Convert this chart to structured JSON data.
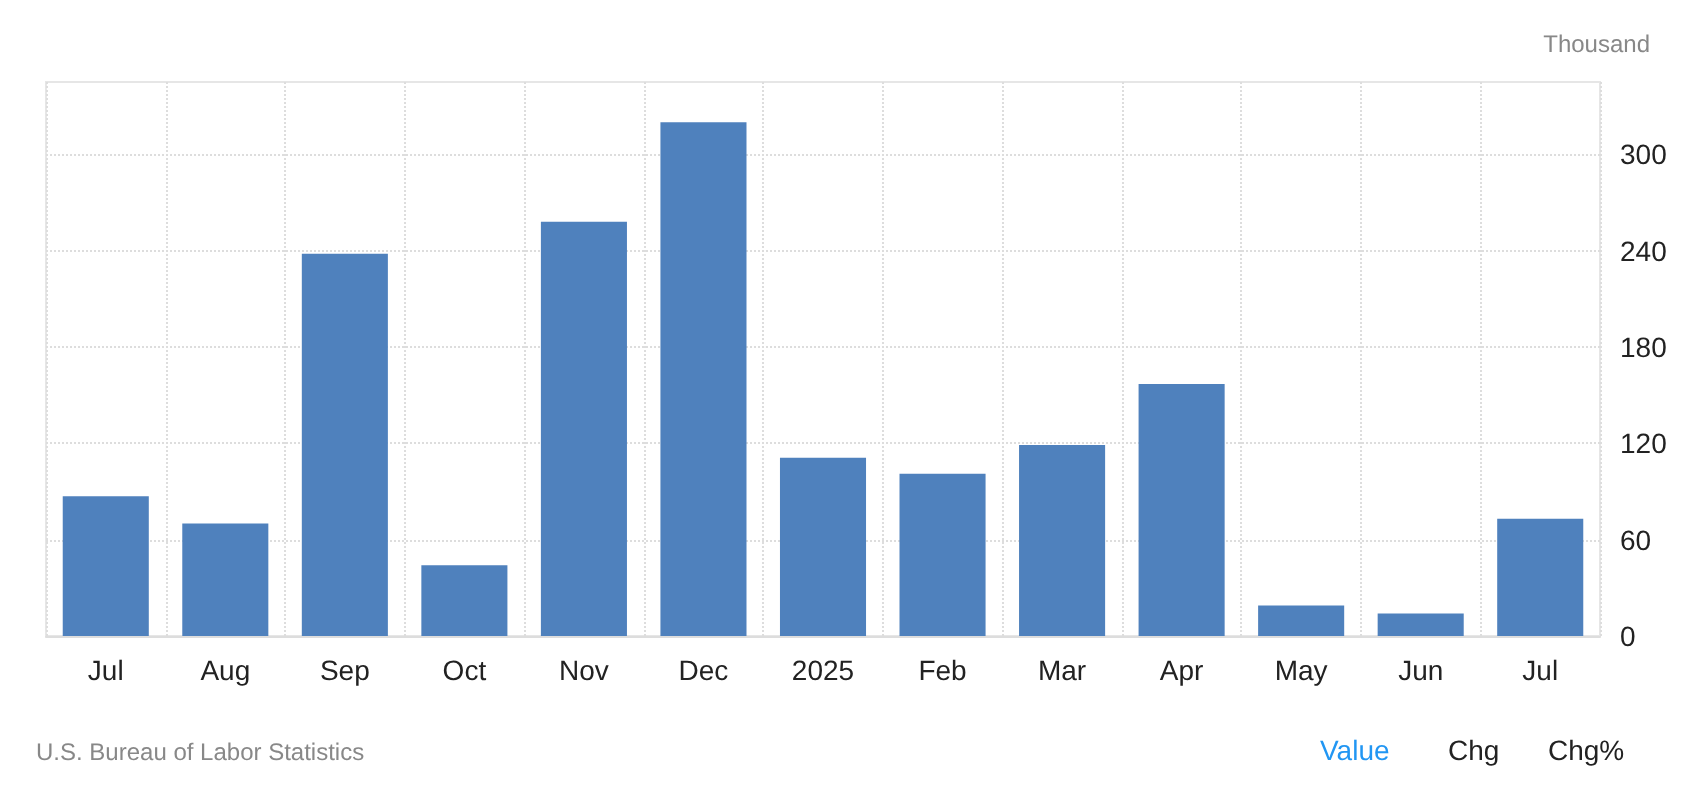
{
  "chart_data": {
    "type": "bar",
    "ylabel": "Thousand",
    "categories": [
      "Jul",
      "Aug",
      "Sep",
      "Oct",
      "Nov",
      "Dec",
      "2025",
      "Feb",
      "Mar",
      "Apr",
      "May",
      "Jun",
      "Jul"
    ],
    "values": [
      87,
      70,
      238,
      44,
      258,
      320,
      111,
      101,
      119,
      157,
      19,
      14,
      73
    ],
    "color": "#4f81bd",
    "ylim": [
      0,
      345
    ],
    "yticks": [
      0,
      60,
      120,
      180,
      240,
      300
    ],
    "grid": true,
    "annotations": [
      "U.S. Bureau of Labor Statistics",
      "Value",
      "Chg",
      "Chg%"
    ]
  }
}
